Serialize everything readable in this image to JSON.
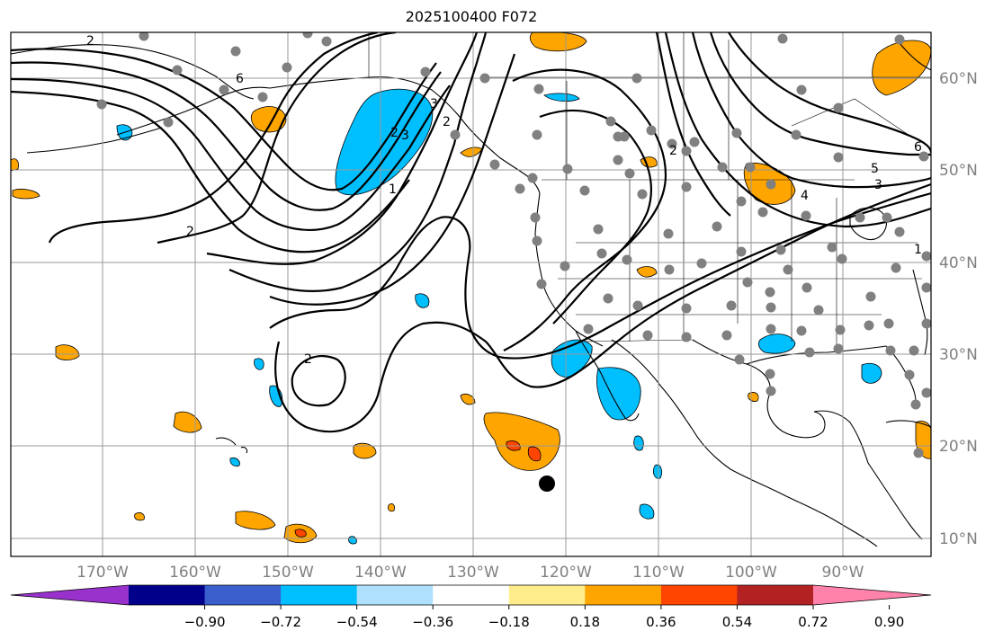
{
  "title": "2025100400 F072",
  "map": {
    "lon_labels": [
      "170°W",
      "160°W",
      "150°W",
      "140°W",
      "130°W",
      "120°W",
      "110°W",
      "100°W",
      "90°W"
    ],
    "lat_labels": [
      "60°N",
      "50°N",
      "40°N",
      "30°N",
      "20°N",
      "10°N"
    ],
    "contour_labels": [
      "1",
      "2",
      "2",
      "2",
      "2",
      "3",
      "3",
      "4",
      "5",
      "6",
      "6",
      "1",
      "2",
      "2",
      "3"
    ],
    "colors": {
      "coast": "#000000",
      "grid": "#999999",
      "contour": "#000000",
      "station": "#808080",
      "storm_marker": "#000000"
    }
  },
  "colorbar": {
    "tick_labels": [
      "−0.90",
      "−0.72",
      "−0.54",
      "−0.36",
      "−0.18",
      "0.18",
      "0.36",
      "0.54",
      "0.72",
      "0.90"
    ],
    "bins": [
      {
        "color": "#9932cc"
      },
      {
        "color": "#00008b"
      },
      {
        "color": "#3a5fcd"
      },
      {
        "color": "#00bfff"
      },
      {
        "color": "#afe1ff"
      },
      {
        "color": "#ffffff"
      },
      {
        "color": "#ffec8b"
      },
      {
        "color": "#ffa500"
      },
      {
        "color": "#ff4500"
      },
      {
        "color": "#b22222"
      },
      {
        "color": "#ff82ab"
      }
    ]
  }
}
